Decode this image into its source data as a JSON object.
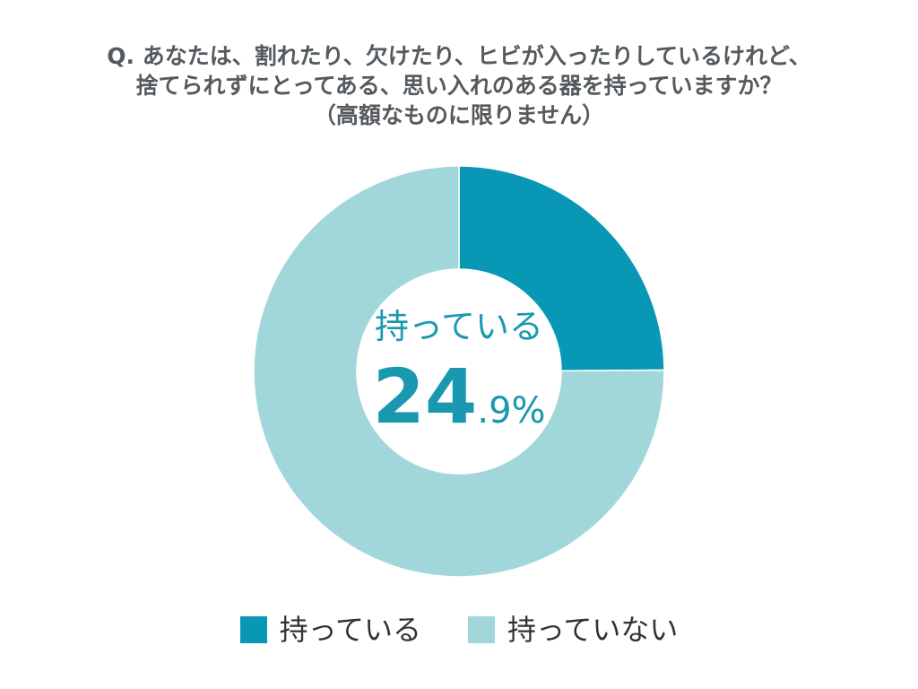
{
  "title": {
    "line1": "Q. あなたは、割れたり、欠けたり、ヒビが入ったりしているけれど、",
    "line2": "捨てられずにとってある、思い入れのある器を持っていますか？",
    "line3": "（高額なものに限りません）"
  },
  "center": {
    "label": "持っている",
    "value_int": "24",
    "value_dec": ".9%"
  },
  "colors": {
    "have": "#0898b5",
    "have_not": "#a1d7db",
    "title": "#555a5e",
    "center_text": "#1a98b0"
  },
  "chart_data": {
    "type": "pie",
    "style": "donut",
    "categories": [
      "持っている",
      "持っていない"
    ],
    "values": [
      24.9,
      75.1
    ],
    "legend_position": "bottom"
  }
}
